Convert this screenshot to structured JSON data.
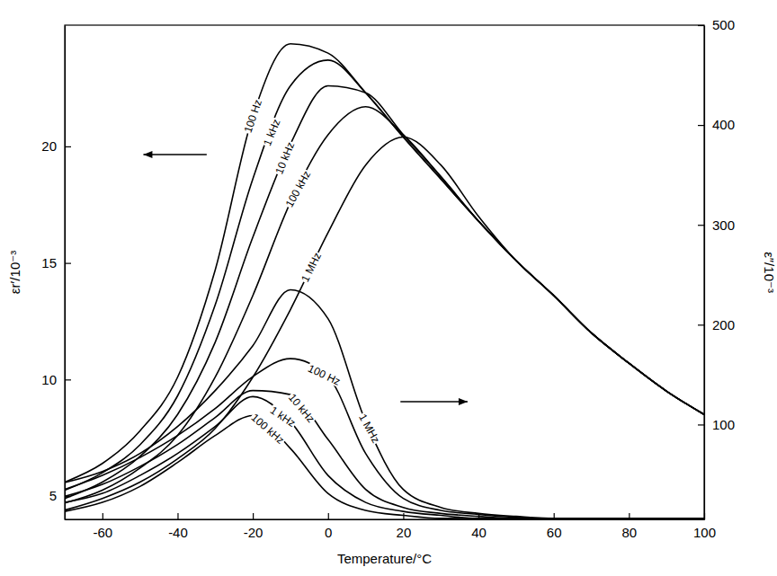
{
  "chart_data": {
    "type": "line",
    "x_label": "Temperature/°C",
    "y_label": "εr′/10⁻³",
    "y2_label": "ε″/10⁻³",
    "x": [
      -70,
      -60,
      -50,
      -40,
      -30,
      -20,
      -10,
      0,
      10,
      20,
      30,
      40,
      50,
      60,
      70,
      80,
      90,
      100
    ],
    "xlim": [
      -70,
      100
    ],
    "xticks": [
      -60,
      -40,
      -20,
      0,
      20,
      40,
      60,
      80,
      100
    ],
    "ylim": [
      4,
      25.2
    ],
    "yticks": [
      5,
      10,
      15,
      20
    ],
    "y2lim": [
      5,
      500
    ],
    "y2ticks": [
      100,
      200,
      300,
      400,
      500
    ],
    "series": [
      {
        "name": "100 Hz",
        "color": "#000000",
        "values": [
          5.6,
          6.4,
          7.8,
          10.1,
          14.7,
          21.3,
          24.4,
          24.0,
          22.3,
          20.4,
          18.6,
          16.8,
          15.1,
          13.6,
          12.0,
          10.7,
          9.5,
          8.5
        ]
      },
      {
        "name": "1 kHz",
        "color": "#000000",
        "values": [
          5.25,
          6.0,
          7.2,
          9.3,
          13.2,
          18.6,
          22.6,
          23.7,
          22.3,
          20.4,
          18.6,
          16.8,
          15.1,
          13.6,
          12.0,
          10.7,
          9.5,
          8.5
        ]
      },
      {
        "name": "10 kHz",
        "color": "#000000",
        "values": [
          4.9,
          5.6,
          6.7,
          8.5,
          11.6,
          16.1,
          20.1,
          22.6,
          22.3,
          20.5,
          18.7,
          16.8,
          15.1,
          13.6,
          12.0,
          10.7,
          9.5,
          8.5
        ]
      },
      {
        "name": "100 kHz",
        "color": "#000000",
        "values": [
          4.7,
          5.25,
          6.2,
          7.6,
          10.1,
          13.6,
          17.6,
          20.5,
          21.7,
          20.5,
          18.7,
          16.8,
          15.1,
          13.6,
          12.0,
          10.7,
          9.5,
          8.5
        ]
      },
      {
        "name": "1 MHz",
        "color": "#000000",
        "values": [
          4.4,
          4.9,
          5.6,
          6.6,
          7.9,
          10.1,
          13.0,
          16.3,
          19.2,
          20.4,
          19.2,
          17.0,
          15.1,
          13.6,
          12.0,
          10.7,
          9.5,
          8.5
        ]
      },
      {
        "name": "1 MHz",
        "color": "#000000",
        "axis": "y2",
        "values": [
          42,
          53,
          71,
          98,
          134,
          179,
          235,
          206,
          103,
          35,
          17,
          11,
          8,
          6,
          6,
          6,
          6,
          6
        ]
      },
      {
        "name": "100 Hz",
        "color": "#000000",
        "axis": "y2",
        "values": [
          35,
          49,
          67,
          89,
          116,
          148,
          166,
          148,
          71,
          26,
          14,
          10,
          7,
          6,
          6,
          6,
          6,
          6
        ]
      },
      {
        "name": "10 kHz",
        "color": "#000000",
        "axis": "y2",
        "values": [
          28,
          40,
          58,
          80,
          107,
          134,
          130,
          85,
          35,
          17,
          11,
          8,
          6,
          6,
          6,
          6,
          6,
          6
        ]
      },
      {
        "name": "1 kHz",
        "color": "#000000",
        "axis": "y2",
        "values": [
          22,
          31,
          49,
          71,
          98,
          128,
          103,
          49,
          22,
          13,
          9,
          6,
          6,
          6,
          6,
          6,
          6,
          6
        ]
      },
      {
        "name": "100 kHz",
        "color": "#000000",
        "axis": "y2",
        "values": [
          13,
          22,
          38,
          62,
          89,
          109,
          76,
          31,
          14,
          9,
          6,
          6,
          6,
          6,
          6,
          6,
          6,
          6
        ]
      }
    ]
  }
}
